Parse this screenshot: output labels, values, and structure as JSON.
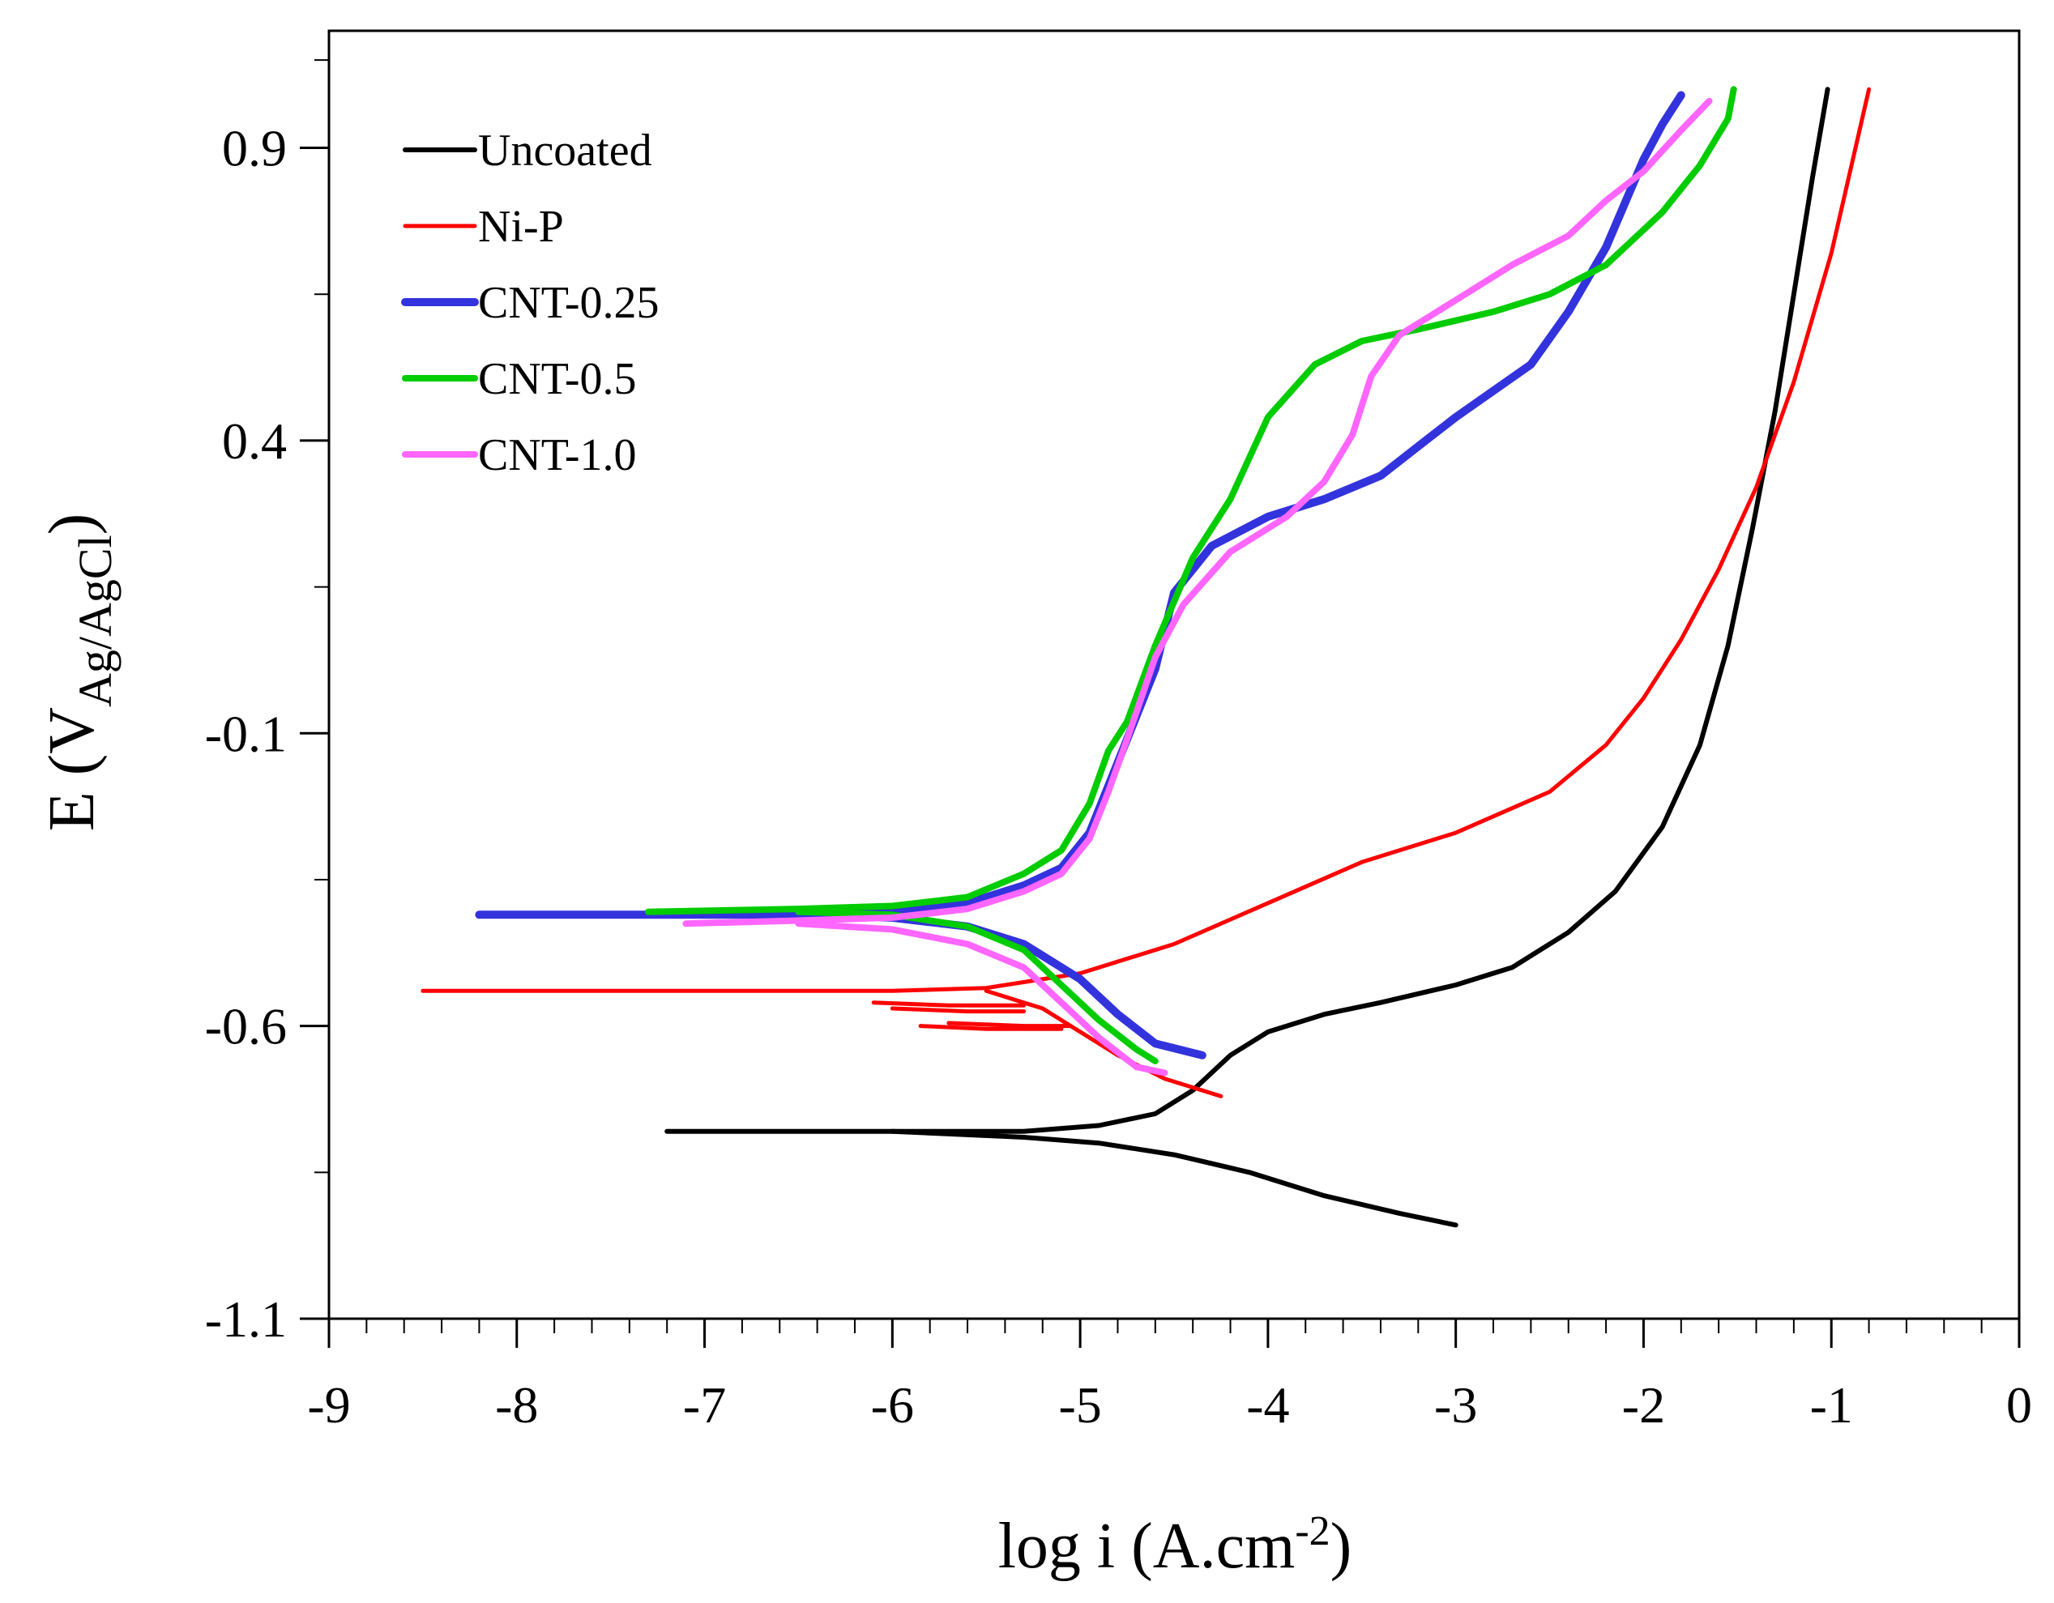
{
  "chart_data": {
    "type": "line",
    "title": "",
    "xlabel": {
      "main": "log i (A.cm",
      "sup": "-2",
      "end": ")"
    },
    "ylabel": {
      "main": "E (V",
      "sub": "Ag/AgCl",
      "end": ")"
    },
    "xlim": [
      -9,
      0
    ],
    "ylim": [
      -1.1,
      1.1
    ],
    "xticks": [
      -9,
      -8,
      -7,
      -6,
      -5,
      -4,
      -3,
      -2,
      -1,
      0
    ],
    "xtick_labels": [
      "-9",
      "-8",
      "-7",
      "-6",
      "-5",
      "-4",
      "-3",
      "-2",
      "-1",
      "0"
    ],
    "yticks": [
      -1.1,
      -0.6,
      -0.1,
      0.4,
      0.9
    ],
    "ytick_labels": [
      "-1.1",
      "-0.6",
      "-0.1",
      "0.4",
      "0.9"
    ],
    "legend_position": "top-left",
    "series": [
      {
        "name": "Uncoated",
        "color": "#000000",
        "anodic": [
          [
            -7.2,
            -0.78
          ],
          [
            -6,
            -0.78
          ],
          [
            -5.3,
            -0.78
          ],
          [
            -4.9,
            -0.77
          ],
          [
            -4.6,
            -0.75
          ],
          [
            -4.4,
            -0.71
          ],
          [
            -4.2,
            -0.65
          ],
          [
            -4.0,
            -0.61
          ],
          [
            -3.7,
            -0.58
          ],
          [
            -3.4,
            -0.56
          ],
          [
            -3.0,
            -0.53
          ],
          [
            -2.7,
            -0.5
          ],
          [
            -2.4,
            -0.44
          ],
          [
            -2.15,
            -0.37
          ],
          [
            -1.9,
            -0.26
          ],
          [
            -1.7,
            -0.12
          ],
          [
            -1.55,
            0.05
          ],
          [
            -1.42,
            0.25
          ],
          [
            -1.3,
            0.45
          ],
          [
            -1.2,
            0.65
          ],
          [
            -1.1,
            0.85
          ],
          [
            -1.02,
            1.0
          ]
        ],
        "cathodic": [
          [
            -6.0,
            -0.78
          ],
          [
            -5.3,
            -0.79
          ],
          [
            -4.9,
            -0.8
          ],
          [
            -4.5,
            -0.82
          ],
          [
            -4.1,
            -0.85
          ],
          [
            -3.7,
            -0.89
          ],
          [
            -3.3,
            -0.92
          ],
          [
            -3.0,
            -0.94
          ]
        ]
      },
      {
        "name": "Ni-P",
        "color": "#ff0000",
        "anodic": [
          [
            -8.5,
            -0.54
          ],
          [
            -7,
            -0.54
          ],
          [
            -6,
            -0.54
          ],
          [
            -5.5,
            -0.535
          ],
          [
            -5,
            -0.51
          ],
          [
            -4.5,
            -0.46
          ],
          [
            -4,
            -0.39
          ],
          [
            -3.5,
            -0.32
          ],
          [
            -3,
            -0.27
          ],
          [
            -2.5,
            -0.2
          ],
          [
            -2.2,
            -0.12
          ],
          [
            -2.0,
            -0.04
          ],
          [
            -1.8,
            0.06
          ],
          [
            -1.6,
            0.18
          ],
          [
            -1.4,
            0.32
          ],
          [
            -1.2,
            0.5
          ],
          [
            -1.0,
            0.72
          ],
          [
            -0.8,
            1.0
          ]
        ],
        "cathodic": [
          [
            -5.5,
            -0.54
          ],
          [
            -5.2,
            -0.57
          ],
          [
            -5.0,
            -0.61
          ],
          [
            -4.8,
            -0.65
          ],
          [
            -4.55,
            -0.69
          ],
          [
            -4.25,
            -0.72
          ]
        ],
        "fragments": [
          [
            [
              -6.1,
              -0.56
            ],
            [
              -5.7,
              -0.565
            ],
            [
              -5.3,
              -0.565
            ]
          ],
          [
            [
              -6.0,
              -0.57
            ],
            [
              -5.6,
              -0.575
            ],
            [
              -5.3,
              -0.575
            ]
          ],
          [
            [
              -5.85,
              -0.6
            ],
            [
              -5.5,
              -0.605
            ],
            [
              -5.1,
              -0.605
            ]
          ],
          [
            [
              -5.7,
              -0.595
            ],
            [
              -5.3,
              -0.6
            ],
            [
              -5.05,
              -0.6
            ]
          ]
        ]
      },
      {
        "name": "CNT-0.25",
        "color": "#3333dd",
        "anodic": [
          [
            -8.2,
            -0.41
          ],
          [
            -6.5,
            -0.41
          ],
          [
            -6,
            -0.405
          ],
          [
            -5.6,
            -0.39
          ],
          [
            -5.3,
            -0.36
          ],
          [
            -5.1,
            -0.33
          ],
          [
            -4.95,
            -0.27
          ],
          [
            -4.85,
            -0.19
          ],
          [
            -4.75,
            -0.11
          ],
          [
            -4.6,
            0.01
          ],
          [
            -4.5,
            0.14
          ],
          [
            -4.3,
            0.22
          ],
          [
            -4.0,
            0.27
          ],
          [
            -3.7,
            0.3
          ],
          [
            -3.4,
            0.34
          ],
          [
            -3.2,
            0.39
          ],
          [
            -3.0,
            0.44
          ],
          [
            -2.6,
            0.53
          ],
          [
            -2.4,
            0.62
          ],
          [
            -2.2,
            0.73
          ],
          [
            -2.0,
            0.88
          ],
          [
            -1.9,
            0.94
          ],
          [
            -1.8,
            0.99
          ]
        ],
        "cathodic": [
          [
            -6.5,
            -0.41
          ],
          [
            -6,
            -0.415
          ],
          [
            -5.6,
            -0.43
          ],
          [
            -5.3,
            -0.46
          ],
          [
            -5.0,
            -0.52
          ],
          [
            -4.8,
            -0.58
          ],
          [
            -4.6,
            -0.63
          ],
          [
            -4.35,
            -0.65
          ]
        ]
      },
      {
        "name": "CNT-0.5",
        "color": "#00cc00",
        "anodic": [
          [
            -7.3,
            -0.405
          ],
          [
            -6.5,
            -0.4
          ],
          [
            -6,
            -0.395
          ],
          [
            -5.6,
            -0.38
          ],
          [
            -5.3,
            -0.34
          ],
          [
            -5.1,
            -0.3
          ],
          [
            -4.95,
            -0.22
          ],
          [
            -4.85,
            -0.13
          ],
          [
            -4.75,
            -0.08
          ],
          [
            -4.6,
            0.05
          ],
          [
            -4.4,
            0.2
          ],
          [
            -4.2,
            0.3
          ],
          [
            -4.0,
            0.44
          ],
          [
            -3.75,
            0.53
          ],
          [
            -3.5,
            0.57
          ],
          [
            -3.2,
            0.59
          ],
          [
            -2.8,
            0.62
          ],
          [
            -2.5,
            0.65
          ],
          [
            -2.2,
            0.7
          ],
          [
            -1.9,
            0.79
          ],
          [
            -1.7,
            0.87
          ],
          [
            -1.55,
            0.95
          ],
          [
            -1.52,
            1.0
          ]
        ],
        "cathodic": [
          [
            -6.5,
            -0.405
          ],
          [
            -6,
            -0.41
          ],
          [
            -5.6,
            -0.43
          ],
          [
            -5.3,
            -0.47
          ],
          [
            -5.1,
            -0.53
          ],
          [
            -4.9,
            -0.59
          ],
          [
            -4.7,
            -0.64
          ],
          [
            -4.6,
            -0.66
          ]
        ]
      },
      {
        "name": "CNT-1.0",
        "color": "#ff66ff",
        "anodic": [
          [
            -7.1,
            -0.425
          ],
          [
            -6.5,
            -0.42
          ],
          [
            -6,
            -0.415
          ],
          [
            -5.6,
            -0.4
          ],
          [
            -5.3,
            -0.37
          ],
          [
            -5.1,
            -0.34
          ],
          [
            -4.95,
            -0.28
          ],
          [
            -4.85,
            -0.2
          ],
          [
            -4.75,
            -0.11
          ],
          [
            -4.6,
            0.03
          ],
          [
            -4.45,
            0.12
          ],
          [
            -4.2,
            0.21
          ],
          [
            -3.9,
            0.27
          ],
          [
            -3.7,
            0.33
          ],
          [
            -3.55,
            0.41
          ],
          [
            -3.45,
            0.51
          ],
          [
            -3.3,
            0.58
          ],
          [
            -3.0,
            0.64
          ],
          [
            -2.7,
            0.7
          ],
          [
            -2.4,
            0.75
          ],
          [
            -2.2,
            0.81
          ],
          [
            -2.0,
            0.86
          ],
          [
            -1.8,
            0.93
          ],
          [
            -1.65,
            0.98
          ]
        ],
        "cathodic": [
          [
            -6.5,
            -0.425
          ],
          [
            -6,
            -0.435
          ],
          [
            -5.6,
            -0.46
          ],
          [
            -5.3,
            -0.5
          ],
          [
            -5.1,
            -0.56
          ],
          [
            -4.9,
            -0.62
          ],
          [
            -4.7,
            -0.67
          ],
          [
            -4.55,
            -0.68
          ]
        ]
      }
    ]
  }
}
